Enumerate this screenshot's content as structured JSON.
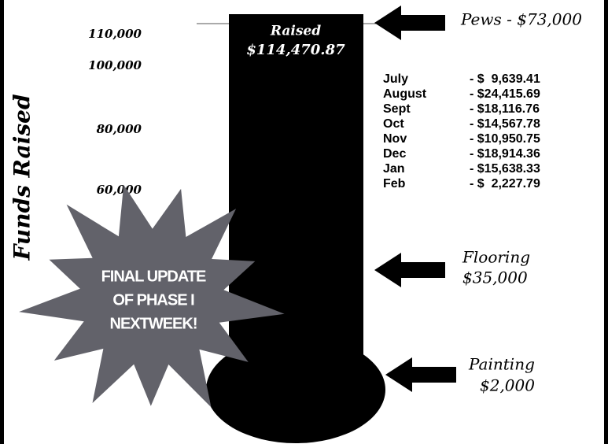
{
  "scale_labels": [
    "110,000",
    "100,000",
    "80,000",
    "60,000"
  ],
  "axis_title": "Funds Raised",
  "raised": {
    "label": "Raised",
    "amount": "$114,470.87"
  },
  "months": [
    {
      "name": "July",
      "amount": "- $  9,639.41"
    },
    {
      "name": "August",
      "amount": "- $24,415.69"
    },
    {
      "name": "Sept",
      "amount": "- $18,116.76"
    },
    {
      "name": "Oct",
      "amount": "- $14,567.78"
    },
    {
      "name": "Nov",
      "amount": "- $10,950.75"
    },
    {
      "name": "Dec",
      "amount": "- $18,914.36"
    },
    {
      "name": "Jan",
      "amount": "- $15,638.33"
    },
    {
      "name": "Feb",
      "amount": "- $  2,227.79"
    }
  ],
  "goals": [
    {
      "label": "Pews - $73,000"
    },
    {
      "label": "Flooring",
      "amount": "$35,000"
    },
    {
      "label": "Painting",
      "amount": "$2,000"
    }
  ],
  "announcement": [
    "FINAL UPDATE",
    "OF PHASE I",
    "NEXTWEEK!"
  ]
}
